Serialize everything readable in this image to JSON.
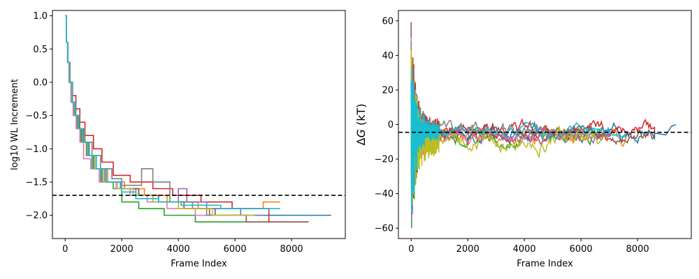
{
  "chart_data": [
    {
      "type": "line",
      "xlabel": "Frame Index",
      "ylabel": "log10 WL Increment",
      "xlim": [
        -450,
        9900
      ],
      "ylim": [
        -2.35,
        1.08
      ],
      "xticks": [
        0,
        2000,
        4000,
        6000,
        8000
      ],
      "xtick_labels": [
        "0",
        "2000",
        "4000",
        "6000",
        "8000"
      ],
      "yticks": [
        -2.0,
        -1.5,
        -1.0,
        -0.5,
        0.0,
        0.5,
        1.0
      ],
      "ytick_labels": [
        "−2.0",
        "−1.5",
        "−1.0",
        "−0.5",
        "0.0",
        "0.5",
        "1.0"
      ],
      "hline": {
        "y": -1.7,
        "style": "dashed",
        "color": "#000000"
      },
      "grid": false,
      "series": [
        {
          "color": "#1f77b4",
          "x_end": 9400,
          "steps": [
            [
              0,
              1.0
            ],
            [
              40,
              0.6
            ],
            [
              90,
              0.3
            ],
            [
              150,
              0.0
            ],
            [
              230,
              -0.3
            ],
            [
              330,
              -0.5
            ],
            [
              460,
              -0.7
            ],
            [
              600,
              -0.9
            ],
            [
              800,
              -1.1
            ],
            [
              1000,
              -1.3
            ],
            [
              1300,
              -1.5
            ],
            [
              2000,
              -1.6
            ],
            [
              2600,
              -1.7
            ],
            [
              3300,
              -1.8
            ],
            [
              4200,
              -1.9
            ],
            [
              5300,
              -2.0
            ]
          ]
        },
        {
          "color": "#ff7f0e",
          "x_end": 7600,
          "steps": [
            [
              0,
              1.0
            ],
            [
              40,
              0.6
            ],
            [
              90,
              0.3
            ],
            [
              160,
              0.0
            ],
            [
              240,
              -0.3
            ],
            [
              350,
              -0.5
            ],
            [
              480,
              -0.7
            ],
            [
              650,
              -0.9
            ],
            [
              850,
              -1.1
            ],
            [
              1100,
              -1.3
            ],
            [
              1500,
              -1.5
            ],
            [
              2100,
              -1.6
            ],
            [
              2800,
              -1.7
            ],
            [
              3600,
              -1.8
            ],
            [
              4700,
              -1.9
            ],
            [
              7000,
              -1.8
            ]
          ]
        },
        {
          "color": "#2ca02c",
          "x_end": 6700,
          "steps": [
            [
              0,
              1.0
            ],
            [
              40,
              0.6
            ],
            [
              90,
              0.3
            ],
            [
              140,
              0.0
            ],
            [
              210,
              -0.3
            ],
            [
              300,
              -0.5
            ],
            [
              420,
              -0.7
            ],
            [
              560,
              -0.9
            ],
            [
              750,
              -1.1
            ],
            [
              950,
              -1.3
            ],
            [
              1250,
              -1.5
            ],
            [
              1700,
              -1.6
            ],
            [
              2000,
              -1.8
            ],
            [
              2600,
              -1.9
            ],
            [
              3500,
              -2.0
            ],
            [
              4600,
              -2.1
            ]
          ]
        },
        {
          "color": "#d62728",
          "x_end": 8600,
          "steps": [
            [
              0,
              1.0
            ],
            [
              40,
              0.6
            ],
            [
              100,
              0.3
            ],
            [
              170,
              0.0
            ],
            [
              260,
              -0.2
            ],
            [
              380,
              -0.4
            ],
            [
              520,
              -0.6
            ],
            [
              700,
              -0.8
            ],
            [
              1000,
              -1.0
            ],
            [
              1300,
              -1.2
            ],
            [
              1700,
              -1.4
            ],
            [
              2300,
              -1.5
            ],
            [
              3100,
              -1.6
            ],
            [
              3800,
              -1.7
            ],
            [
              4800,
              -1.8
            ],
            [
              5900,
              -1.9
            ],
            [
              7200,
              -2.1
            ]
          ]
        },
        {
          "color": "#9467bd",
          "x_end": 7000,
          "steps": [
            [
              0,
              1.0
            ],
            [
              40,
              0.6
            ],
            [
              90,
              0.3
            ],
            [
              150,
              0.0
            ],
            [
              230,
              -0.3
            ],
            [
              330,
              -0.5
            ],
            [
              450,
              -0.7
            ],
            [
              600,
              -0.9
            ],
            [
              800,
              -1.1
            ],
            [
              1050,
              -1.3
            ],
            [
              1400,
              -1.5
            ],
            [
              1950,
              -1.6
            ],
            [
              2500,
              -1.7
            ],
            [
              3100,
              -1.8
            ],
            [
              4000,
              -1.6
            ],
            [
              4300,
              -1.8
            ],
            [
              5000,
              -1.9
            ],
            [
              6200,
              -2.0
            ]
          ]
        },
        {
          "color": "#8c564b",
          "x_end": 8600,
          "steps": [
            [
              0,
              1.0
            ],
            [
              40,
              0.6
            ],
            [
              90,
              0.3
            ],
            [
              160,
              0.0
            ],
            [
              240,
              -0.3
            ],
            [
              340,
              -0.5
            ],
            [
              480,
              -0.7
            ],
            [
              650,
              -0.9
            ],
            [
              850,
              -1.1
            ],
            [
              1100,
              -1.3
            ],
            [
              1450,
              -1.5
            ],
            [
              2000,
              -1.6
            ],
            [
              2600,
              -1.7
            ],
            [
              3300,
              -1.8
            ],
            [
              4200,
              -1.9
            ],
            [
              5100,
              -2.0
            ],
            [
              6400,
              -2.1
            ]
          ]
        },
        {
          "color": "#e377c2",
          "x_end": 6400,
          "steps": [
            [
              0,
              1.0
            ],
            [
              40,
              0.6
            ],
            [
              80,
              0.3
            ],
            [
              130,
              0.0
            ],
            [
              200,
              -0.3
            ],
            [
              280,
              -0.5
            ],
            [
              390,
              -0.7
            ],
            [
              520,
              -0.9
            ],
            [
              650,
              -1.15
            ],
            [
              900,
              -1.3
            ],
            [
              1200,
              -1.5
            ],
            [
              1800,
              -1.6
            ],
            [
              2300,
              -1.7
            ],
            [
              2900,
              -1.8
            ],
            [
              3600,
              -1.9
            ],
            [
              4600,
              -2.0
            ]
          ]
        },
        {
          "color": "#7f7f7f",
          "x_end": 6500,
          "steps": [
            [
              0,
              1.0
            ],
            [
              40,
              0.6
            ],
            [
              100,
              0.3
            ],
            [
              170,
              0.0
            ],
            [
              260,
              -0.3
            ],
            [
              380,
              -0.5
            ],
            [
              520,
              -0.7
            ],
            [
              700,
              -0.9
            ],
            [
              950,
              -1.1
            ],
            [
              1250,
              -1.3
            ],
            [
              1650,
              -1.45
            ],
            [
              2000,
              -1.55
            ],
            [
              2700,
              -1.3
            ],
            [
              3100,
              -1.5
            ],
            [
              3700,
              -1.8
            ],
            [
              4500,
              -1.9
            ],
            [
              5000,
              -2.0
            ]
          ]
        },
        {
          "color": "#bcbd22",
          "x_end": 6700,
          "steps": [
            [
              0,
              1.0
            ],
            [
              40,
              0.6
            ],
            [
              90,
              0.3
            ],
            [
              150,
              0.0
            ],
            [
              230,
              -0.3
            ],
            [
              330,
              -0.5
            ],
            [
              460,
              -0.7
            ],
            [
              620,
              -0.9
            ],
            [
              820,
              -1.1
            ],
            [
              1050,
              -1.3
            ],
            [
              1350,
              -1.5
            ],
            [
              1850,
              -1.6
            ],
            [
              2400,
              -1.7
            ],
            [
              3100,
              -1.8
            ],
            [
              4000,
              -1.9
            ],
            [
              5200,
              -2.0
            ]
          ]
        },
        {
          "color": "#17becf",
          "x_end": 7600,
          "steps": [
            [
              0,
              1.0
            ],
            [
              40,
              0.6
            ],
            [
              90,
              0.3
            ],
            [
              160,
              0.0
            ],
            [
              240,
              -0.3
            ],
            [
              340,
              -0.5
            ],
            [
              470,
              -0.7
            ],
            [
              630,
              -0.9
            ],
            [
              830,
              -1.1
            ],
            [
              1100,
              -1.3
            ],
            [
              1450,
              -1.5
            ],
            [
              2000,
              -1.65
            ],
            [
              2500,
              -1.75
            ],
            [
              3300,
              -1.8
            ],
            [
              4100,
              -1.85
            ],
            [
              5500,
              -1.9
            ]
          ]
        }
      ]
    },
    {
      "type": "line",
      "xlabel": "Frame Index",
      "ylabel": "ΔG (kT)",
      "ylabel_parts": {
        "delta": "Δ",
        "symbol": "G",
        "unit": " (kT)"
      },
      "xlim": [
        -450,
        9900
      ],
      "ylim": [
        -66,
        66
      ],
      "xticks": [
        0,
        2000,
        4000,
        6000,
        8000
      ],
      "xtick_labels": [
        "0",
        "2000",
        "4000",
        "6000",
        "8000"
      ],
      "yticks": [
        -60,
        -40,
        -20,
        0,
        20,
        40,
        60
      ],
      "ytick_labels": [
        "−60",
        "−40",
        "−20",
        "0",
        "20",
        "40",
        "60"
      ],
      "hline": {
        "y": -4.5,
        "style": "dashed",
        "color": "#000000"
      },
      "grid": false,
      "series": [
        {
          "color": "#1f77b4",
          "x_end": 9350,
          "center": -5,
          "noise": 5,
          "seed": 11,
          "tail": [
            [
              8600,
              -5
            ],
            [
              9000,
              -6
            ],
            [
              9200,
              -1
            ],
            [
              9350,
              0
            ]
          ]
        },
        {
          "color": "#ff7f0e",
          "x_end": 7600,
          "center": -6,
          "noise": 5,
          "seed": 23
        },
        {
          "color": "#2ca02c",
          "x_end": 6700,
          "center": -7,
          "noise": 5,
          "seed": 37
        },
        {
          "color": "#d62728",
          "x_end": 8600,
          "center": -3,
          "noise": 5,
          "seed": 41
        },
        {
          "color": "#9467bd",
          "x_end": 7000,
          "center": -5,
          "noise": 4,
          "seed": 53
        },
        {
          "color": "#8c564b",
          "x_end": 8600,
          "center": -6,
          "noise": 5,
          "seed": 67
        },
        {
          "color": "#e377c2",
          "x_end": 6400,
          "center": -8,
          "noise": 4,
          "seed": 71
        },
        {
          "color": "#7f7f7f",
          "x_end": 6500,
          "center": -4,
          "noise": 5,
          "seed": 83
        },
        {
          "color": "#bcbd22",
          "x_end": 6700,
          "center": -10,
          "noise": 6,
          "seed": 97
        },
        {
          "color": "#17becf",
          "x_end": 7600,
          "center": -4,
          "noise": 4,
          "seed": 101
        }
      ]
    }
  ]
}
